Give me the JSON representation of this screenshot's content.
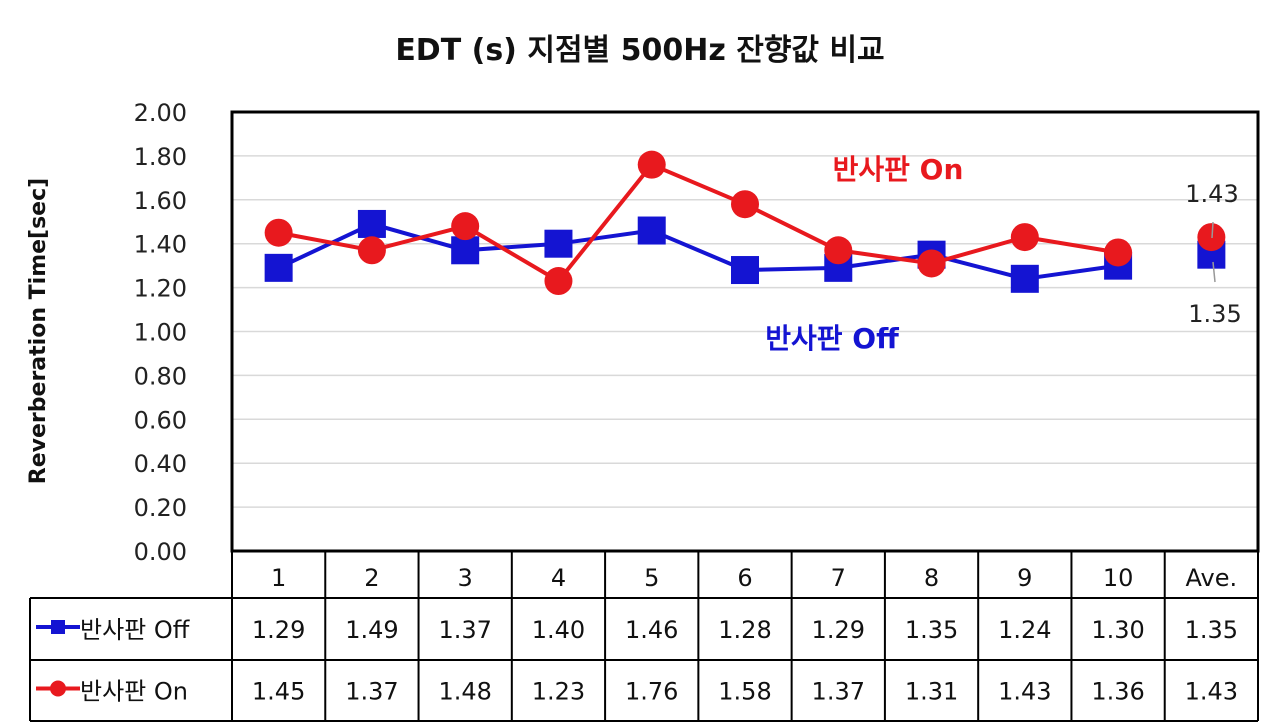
{
  "chart_data": {
    "type": "line",
    "title": "EDT (s) 지점별 500Hz 잔향값 비교",
    "ylabel": "Reverberation Time[sec]",
    "xlabel": "",
    "ylim": [
      0,
      2.0
    ],
    "ytick_labels": [
      "0.00",
      "0.20",
      "0.40",
      "0.60",
      "0.80",
      "1.00",
      "1.20",
      "1.40",
      "1.60",
      "1.80",
      "2.00"
    ],
    "grid": true,
    "categories": [
      "1",
      "2",
      "3",
      "4",
      "5",
      "6",
      "7",
      "8",
      "9",
      "10",
      "Ave."
    ],
    "series": [
      {
        "name": "반사판 Off",
        "color": "#1414d2",
        "marker": "square",
        "values": [
          1.29,
          1.49,
          1.37,
          1.4,
          1.46,
          1.28,
          1.29,
          1.35,
          1.24,
          1.3,
          1.35
        ],
        "value_labels": [
          "1.29",
          "1.49",
          "1.37",
          "1.40",
          "1.46",
          "1.28",
          "1.29",
          "1.35",
          "1.24",
          "1.30",
          "1.35"
        ]
      },
      {
        "name": "반사판 On",
        "color": "#e8191e",
        "marker": "circle",
        "values": [
          1.45,
          1.37,
          1.48,
          1.23,
          1.76,
          1.58,
          1.37,
          1.31,
          1.43,
          1.36,
          1.43
        ],
        "value_labels": [
          "1.45",
          "1.37",
          "1.48",
          "1.23",
          "1.76",
          "1.58",
          "1.37",
          "1.31",
          "1.43",
          "1.36",
          "1.43"
        ]
      }
    ],
    "annotations": [
      {
        "text": "반사판 On",
        "color": "#e8191e"
      },
      {
        "text": "반사판 Off",
        "color": "#1414d2"
      }
    ],
    "average_labels": {
      "on": "1.43",
      "off": "1.35"
    },
    "data_table": true
  }
}
